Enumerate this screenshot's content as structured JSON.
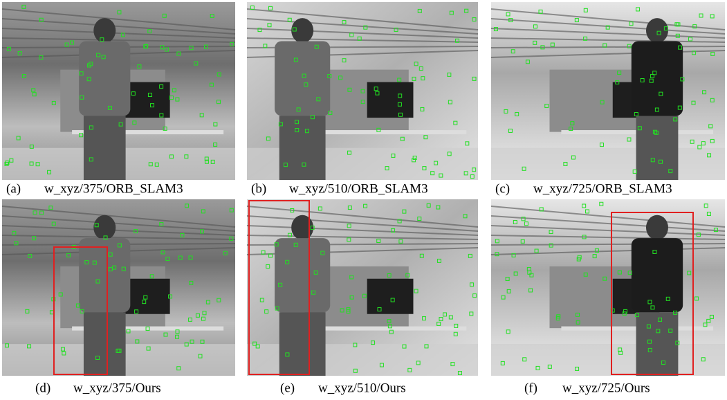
{
  "panels": [
    {
      "label": "(a)",
      "caption": "w_xyz/375/ORB_SLAM3"
    },
    {
      "label": "(b)",
      "caption": "w_xyz/510/ORB_SLAM3"
    },
    {
      "label": "(c)",
      "caption": "w_xyz/725/ORB_SLAM3"
    },
    {
      "label": "(d)",
      "caption": "w_xyz/375/Ours"
    },
    {
      "label": "(e)",
      "caption": "w_xyz/510/Ours"
    },
    {
      "label": "(f)",
      "caption": "w_xyz/725/Ours"
    }
  ]
}
